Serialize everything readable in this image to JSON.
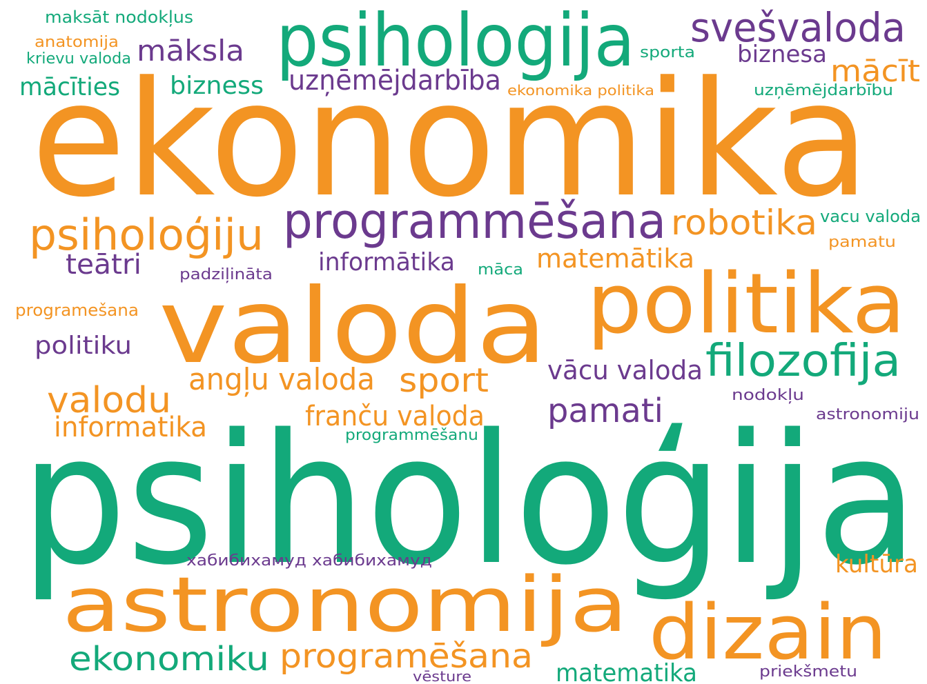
{
  "palette": {
    "orange": "#f39423",
    "green": "#13a97a",
    "purple": "#6b3a8e"
  },
  "words": [
    {
      "text": "maksāt nodokļus",
      "color": "green"
    },
    {
      "text": "anatomija",
      "color": "orange"
    },
    {
      "text": "krievu valoda",
      "color": "green"
    },
    {
      "text": "māksla",
      "color": "purple"
    },
    {
      "text": "psihologija",
      "color": "green"
    },
    {
      "text": "svešvaloda",
      "color": "purple"
    },
    {
      "text": "sporta",
      "color": "green"
    },
    {
      "text": "biznesa",
      "color": "purple"
    },
    {
      "text": "mācīt",
      "color": "orange"
    },
    {
      "text": "mācīties",
      "color": "green"
    },
    {
      "text": "bizness",
      "color": "green"
    },
    {
      "text": "uzņēmējdarbība",
      "color": "purple"
    },
    {
      "text": "ekonomika politika",
      "color": "orange"
    },
    {
      "text": "uzņēmējdarbību",
      "color": "green"
    },
    {
      "text": "ekonomika",
      "color": "orange"
    },
    {
      "text": "psiholoģiju",
      "color": "orange"
    },
    {
      "text": "programmēšana",
      "color": "purple"
    },
    {
      "text": "robotika",
      "color": "orange"
    },
    {
      "text": "vacu valoda",
      "color": "green"
    },
    {
      "text": "pamatu",
      "color": "orange"
    },
    {
      "text": "teātri",
      "color": "purple"
    },
    {
      "text": "padziļināta",
      "color": "purple"
    },
    {
      "text": "informātika",
      "color": "purple"
    },
    {
      "text": "māca",
      "color": "green"
    },
    {
      "text": "matemātika",
      "color": "orange"
    },
    {
      "text": "programešana",
      "color": "orange"
    },
    {
      "text": "valoda",
      "color": "orange"
    },
    {
      "text": "politika",
      "color": "orange"
    },
    {
      "text": "politiku",
      "color": "purple"
    },
    {
      "text": "filozofija",
      "color": "green"
    },
    {
      "text": "angļu valoda",
      "color": "orange"
    },
    {
      "text": "sport",
      "color": "orange"
    },
    {
      "text": "vācu valoda",
      "color": "purple"
    },
    {
      "text": "nodokļu",
      "color": "purple"
    },
    {
      "text": "valodu",
      "color": "orange"
    },
    {
      "text": "pamati",
      "color": "purple"
    },
    {
      "text": "franču valoda",
      "color": "orange"
    },
    {
      "text": "astronomiju",
      "color": "purple"
    },
    {
      "text": "informatika",
      "color": "orange"
    },
    {
      "text": "programmēšanu",
      "color": "green"
    },
    {
      "text": "psiholoģija",
      "color": "green"
    },
    {
      "text": "хабибихамуд хабибихамуд",
      "color": "purple"
    },
    {
      "text": "kultūra",
      "color": "orange"
    },
    {
      "text": "astronomija",
      "color": "orange"
    },
    {
      "text": "dizain",
      "color": "orange"
    },
    {
      "text": "ekonomiku",
      "color": "green"
    },
    {
      "text": "programēšana",
      "color": "orange"
    },
    {
      "text": "vēsture",
      "color": "purple"
    },
    {
      "text": "matematika",
      "color": "green"
    },
    {
      "text": "priekšmetu",
      "color": "purple"
    }
  ]
}
